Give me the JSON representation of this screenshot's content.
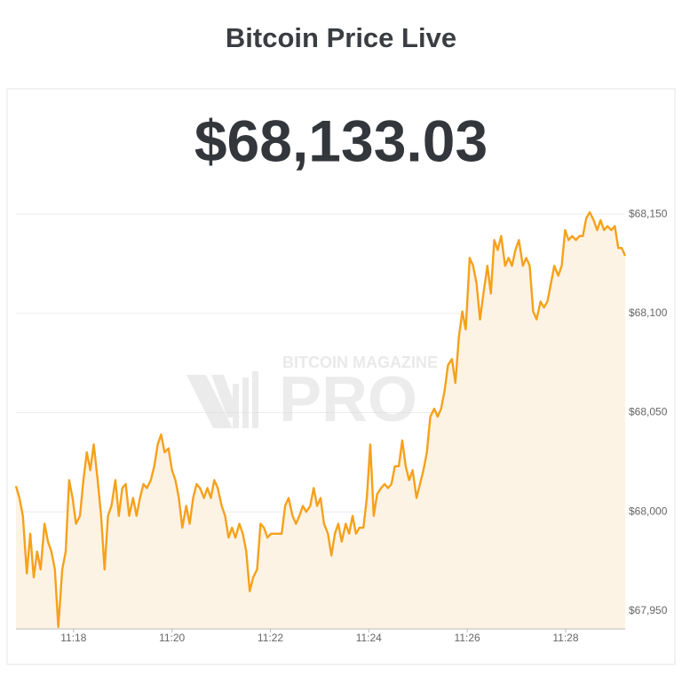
{
  "chart_data": {
    "type": "line",
    "title": "Bitcoin Price Live",
    "price": "$68,133.03",
    "watermark": "BITCOIN MAGAZINE",
    "watermark_logo": "PRO",
    "color": "#f6a11b",
    "area_color": "#fdf3e4",
    "grid": true,
    "xlim": [
      16.83,
      29.21
    ],
    "ylim": [
      67941,
      68155
    ],
    "xticks": [
      {
        "value": 18,
        "label": "11:18"
      },
      {
        "value": 20,
        "label": "11:20"
      },
      {
        "value": 22,
        "label": "11:22"
      },
      {
        "value": 24,
        "label": "11:24"
      },
      {
        "value": 26,
        "label": "11:26"
      },
      {
        "value": 28,
        "label": "11:28"
      }
    ],
    "yticks": [
      {
        "value": 67950,
        "label": "$67,950"
      },
      {
        "value": 68000,
        "label": "$68,000"
      },
      {
        "value": 68050,
        "label": "$68,050"
      },
      {
        "value": 68100,
        "label": "$68,100"
      },
      {
        "value": 68150,
        "label": "$68,150"
      }
    ],
    "x": [
      16.83,
      16.9,
      16.97,
      17.05,
      17.12,
      17.19,
      17.26,
      17.33,
      17.41,
      17.48,
      17.55,
      17.62,
      17.69,
      17.77,
      17.84,
      17.91,
      17.98,
      18.05,
      18.13,
      18.2,
      18.27,
      18.34,
      18.41,
      18.49,
      18.56,
      18.63,
      18.7,
      18.77,
      18.85,
      18.92,
      18.99,
      19.06,
      19.13,
      19.21,
      19.28,
      19.35,
      19.42,
      19.49,
      19.57,
      19.64,
      19.71,
      19.78,
      19.85,
      19.93,
      20,
      20.07,
      20.14,
      20.21,
      20.29,
      20.36,
      20.43,
      20.5,
      20.57,
      20.65,
      20.72,
      20.79,
      20.86,
      20.93,
      21.01,
      21.08,
      21.15,
      21.22,
      21.29,
      21.37,
      21.44,
      21.51,
      21.58,
      21.65,
      21.73,
      21.8,
      21.87,
      21.94,
      22.01,
      22.09,
      22.16,
      22.23,
      22.3,
      22.37,
      22.45,
      22.52,
      22.59,
      22.66,
      22.73,
      22.81,
      22.88,
      22.95,
      23.02,
      23.09,
      23.17,
      23.24,
      23.31,
      23.38,
      23.45,
      23.53,
      23.6,
      23.67,
      23.74,
      23.81,
      23.89,
      23.96,
      24.03,
      24.1,
      24.17,
      24.25,
      24.32,
      24.39,
      24.46,
      24.53,
      24.61,
      24.68,
      24.75,
      24.82,
      24.89,
      24.97,
      25.04,
      25.11,
      25.18,
      25.25,
      25.33,
      25.4,
      25.47,
      25.54,
      25.61,
      25.69,
      25.76,
      25.83,
      25.9,
      25.97,
      26.05,
      26.12,
      26.19,
      26.26,
      26.33,
      26.41,
      26.48,
      26.55,
      26.62,
      26.69,
      26.77,
      26.84,
      26.91,
      26.98,
      27.05,
      27.13,
      27.2,
      27.27,
      27.34,
      27.41,
      27.49,
      27.56,
      27.63,
      27.7,
      27.77,
      27.85,
      27.92,
      27.99,
      28.06,
      28.13,
      28.21,
      28.28,
      28.35,
      28.42,
      28.49,
      28.57,
      28.64,
      28.71,
      28.78,
      28.85,
      28.93,
      29,
      29.07,
      29.14,
      29.21
    ],
    "values": [
      68013,
      68007,
      67998,
      67969,
      67989,
      67967,
      67980,
      67971,
      67994,
      67985,
      67980,
      67971,
      67942,
      67971,
      67980,
      68016,
      68007,
      67994,
      67998,
      68016,
      68030,
      68021,
      68034,
      68016,
      67998,
      67971,
      67998,
      68003,
      68016,
      67998,
      68012,
      68014,
      67998,
      68007,
      67998,
      68007,
      68014,
      68012,
      68016,
      68023,
      68034,
      68039,
      68030,
      68032,
      68021,
      68016,
      68007,
      67992,
      68003,
      67994,
      68007,
      68014,
      68012,
      68007,
      68012,
      68007,
      68016,
      68012,
      68003,
      67998,
      67987,
      67992,
      67987,
      67994,
      67989,
      67980,
      67960,
      67967,
      67971,
      67994,
      67992,
      67987,
      67989,
      67989,
      67989,
      67989,
      68003,
      68007,
      67998,
      67994,
      67998,
      68003,
      68000,
      68003,
      68012,
      68003,
      68007,
      67994,
      67989,
      67978,
      67989,
      67994,
      67985,
      67994,
      67989,
      67998,
      67989,
      67992,
      67992,
      68007,
      68034,
      67998,
      68009,
      68012,
      68014,
      68012,
      68014,
      68023,
      68023,
      68036,
      68023,
      68016,
      68021,
      68007,
      68014,
      68021,
      68030,
      68048,
      68052,
      68048,
      68052,
      68061,
      68074,
      68077,
      68065,
      68088,
      68101,
      68092,
      68128,
      68124,
      68115,
      68097,
      68110,
      68124,
      68110,
      68137,
      68132,
      68139,
      68124,
      68128,
      68124,
      68132,
      68137,
      68124,
      68128,
      68124,
      68101,
      68097,
      68106,
      68103,
      68106,
      68115,
      68124,
      68119,
      68124,
      68142,
      68137,
      68139,
      68137,
      68139,
      68139,
      68148,
      68151,
      68147,
      68142,
      68147,
      68142,
      68144,
      68142,
      68144,
      68133,
      68133,
      68129
    ]
  }
}
